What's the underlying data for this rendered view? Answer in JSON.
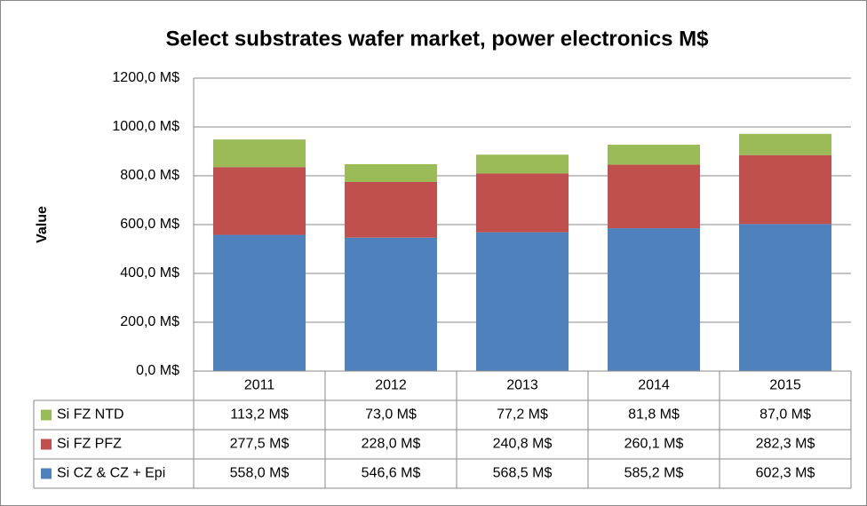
{
  "chart_data": {
    "type": "bar",
    "stacked": true,
    "title": "Select substrates wafer market, power electronics M$",
    "y_label": "Value",
    "categories": [
      "2011",
      "2012",
      "2013",
      "2014",
      "2015"
    ],
    "series": [
      {
        "name": "Si CZ & CZ + Epi",
        "color": "#4f81bd",
        "values": [
          558.0,
          546.6,
          568.5,
          585.2,
          602.3
        ],
        "value_labels": [
          "558,0 M$",
          "546,6 M$",
          "568,5 M$",
          "585,2 M$",
          "602,3 M$"
        ]
      },
      {
        "name": "Si FZ PFZ",
        "color": "#c0504d",
        "values": [
          277.5,
          228.0,
          240.8,
          260.1,
          282.3
        ],
        "value_labels": [
          "277,5 M$",
          "228,0 M$",
          "240,8 M$",
          "260,1 M$",
          "282,3 M$"
        ]
      },
      {
        "name": "Si FZ NTD",
        "color": "#9bbb59",
        "values": [
          113.2,
          73.0,
          77.2,
          81.8,
          87.0
        ],
        "value_labels": [
          "113,2 M$",
          "73,0 M$",
          "77,2 M$",
          "81,8 M$",
          "87,0 M$"
        ]
      }
    ],
    "ylim": [
      0,
      1200
    ],
    "yticks": [
      {
        "value": 0,
        "label": "0,0 M$"
      },
      {
        "value": 200,
        "label": "200,0 M$"
      },
      {
        "value": 400,
        "label": "400,0 M$"
      },
      {
        "value": 600,
        "label": "600,0 M$"
      },
      {
        "value": 800,
        "label": "800,0 M$"
      },
      {
        "value": 1000,
        "label": "1000,0 M$"
      },
      {
        "value": 1200,
        "label": "1200,0 M$"
      }
    ],
    "grid": true,
    "data_table": true
  }
}
